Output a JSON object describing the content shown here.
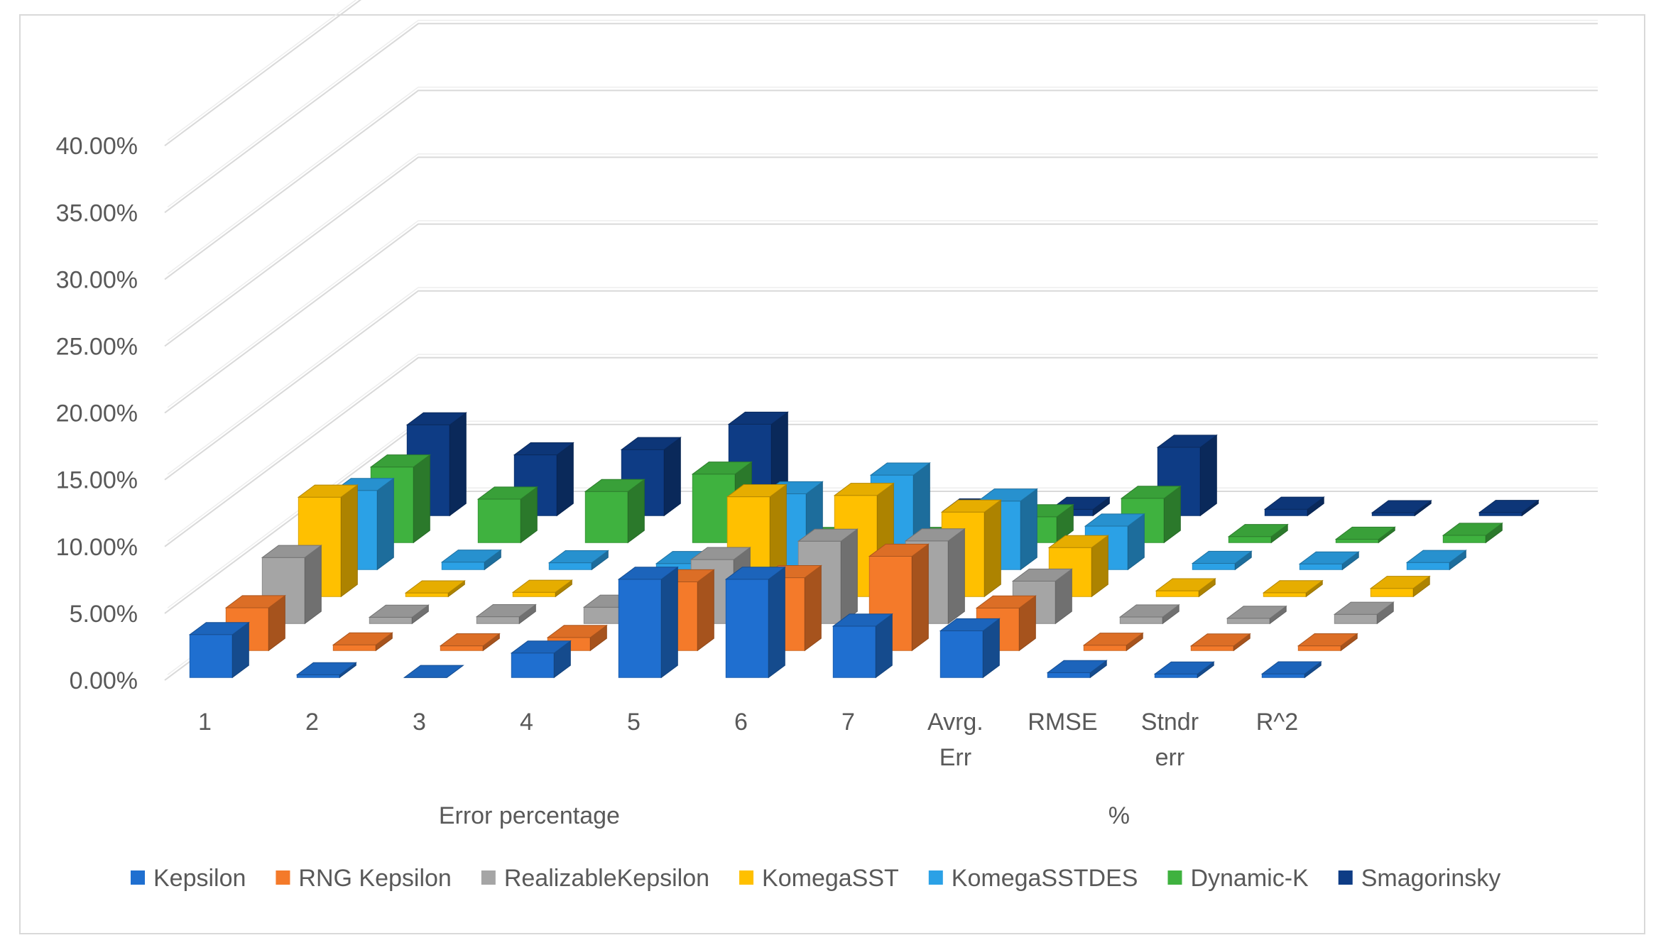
{
  "chart_data": {
    "type": "bar",
    "subtype": "3d-column",
    "categories": [
      "1",
      "2",
      "3",
      "4",
      "5",
      "6",
      "7",
      "Avrg. Err",
      "RMSE",
      "Stndr err",
      "R^2"
    ],
    "category_labels": [
      [
        "1"
      ],
      [
        "2"
      ],
      [
        "3"
      ],
      [
        "4"
      ],
      [
        "5"
      ],
      [
        "6"
      ],
      [
        "7"
      ],
      [
        "Avrg.",
        "Err"
      ],
      [
        "RMSE"
      ],
      [
        "Stndr",
        "err"
      ],
      [
        "R^2"
      ]
    ],
    "category_groups": [
      {
        "label": "Error percentage",
        "from": 0,
        "to": 6
      },
      {
        "label": "%",
        "from": 7,
        "to": 10
      }
    ],
    "series": [
      {
        "name": "Kepsilon",
        "color": "#1f6fd0",
        "values": [
          0.0321,
          0.002,
          0.0,
          0.0183,
          0.0735,
          0.0735,
          0.0384,
          0.0349,
          0.0036,
          0.0026,
          0.0027
        ]
      },
      {
        "name": "RNG Kepsilon",
        "color": "#f47a2a",
        "values": [
          0.032,
          0.0042,
          0.0035,
          0.0097,
          0.0514,
          0.0545,
          0.0705,
          0.0318,
          0.004,
          0.0034,
          0.0035
        ]
      },
      {
        "name": "RealizableKepsilon",
        "color": "#a5a5a5",
        "values": [
          0.0494,
          0.0047,
          0.0051,
          0.0122,
          0.0479,
          0.0616,
          0.0618,
          0.0317,
          0.0049,
          0.0039,
          0.0069
        ]
      },
      {
        "name": "KomegaSST",
        "color": "#ffc000",
        "values": [
          0.0744,
          0.0027,
          0.0032,
          0.0026,
          0.0747,
          0.0757,
          0.0632,
          0.0366,
          0.0043,
          0.0028,
          0.0061
        ]
      },
      {
        "name": "KomegaSSTDES",
        "color": "#2ba1e6",
        "values": [
          0.0592,
          0.0056,
          0.0051,
          0.0045,
          0.0567,
          0.0707,
          0.0513,
          0.0325,
          0.0046,
          0.0042,
          0.0053
        ]
      },
      {
        "name": "Dynamic-K",
        "color": "#3fb23f",
        "values": [
          0.0566,
          0.0325,
          0.0382,
          0.0513,
          0.0023,
          0.0024,
          0.0193,
          0.0331,
          0.0045,
          0.0025,
          0.0054
        ]
      },
      {
        "name": "Smagorinsky",
        "color": "#0e3c85",
        "values": [
          0.0679,
          0.0455,
          0.0494,
          0.0684,
          0.0028,
          0.0035,
          0.0047,
          0.0511,
          0.0048,
          0.0022,
          0.0024
        ]
      }
    ],
    "yticks": [
      "0.00%",
      "5.00%",
      "10.00%",
      "15.00%",
      "20.00%",
      "25.00%",
      "30.00%",
      "35.00%",
      "40.00%"
    ],
    "ylim": [
      0,
      0.4
    ],
    "grid": true,
    "legend": "bottom",
    "title": "",
    "xlabel": "",
    "ylabel": ""
  }
}
